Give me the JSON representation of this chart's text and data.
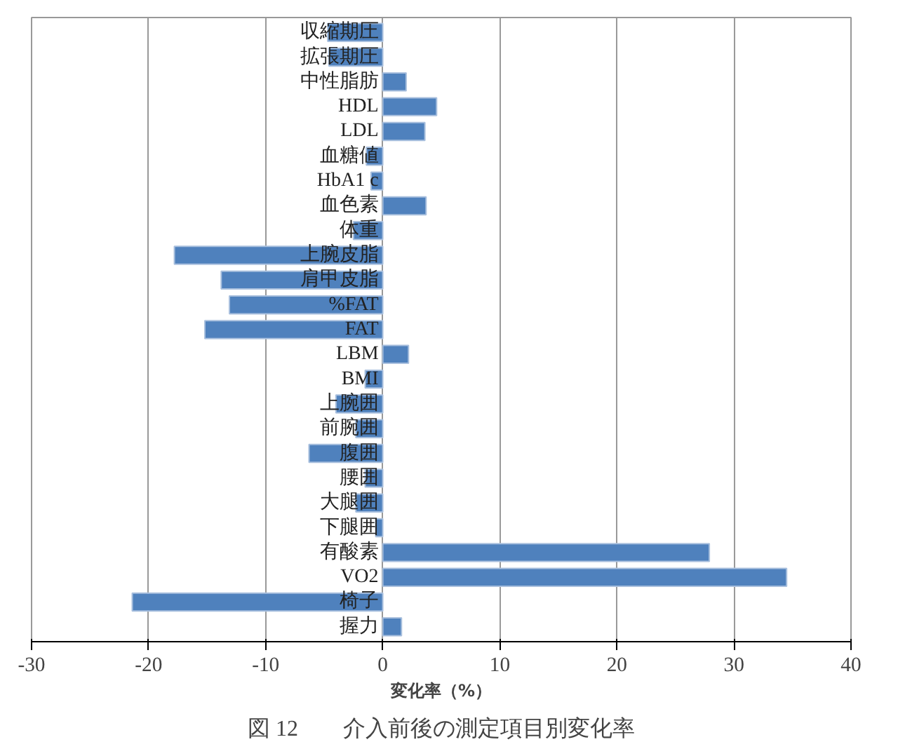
{
  "chart_data": {
    "type": "bar",
    "orientation": "horizontal",
    "title": "図 12　　介入前後の測定項目別変化率",
    "xlabel": "変化率（%）",
    "categories": [
      "収縮期圧",
      "拡張期圧",
      "中性脂肪",
      "HDL",
      "LDL",
      "血糖値",
      "HbA1 c",
      "血色素",
      "体重",
      "上腕皮脂",
      "肩甲皮脂",
      "%FAT",
      "FAT",
      "LBM",
      "BMI",
      "上腕囲",
      "前腕囲",
      "腹囲",
      "腰囲",
      "大腿囲",
      "下腿囲",
      "有酸素",
      "VO2",
      "椅子",
      "握力"
    ],
    "values": [
      -4.7,
      -4.6,
      2.0,
      4.6,
      3.6,
      -1.4,
      -1.0,
      3.7,
      -2.5,
      -17.8,
      -13.8,
      -13.1,
      -15.2,
      2.2,
      -1.5,
      -4.0,
      -2.3,
      -6.3,
      -1.5,
      -2.3,
      -0.6,
      27.9,
      34.5,
      -21.4,
      1.6
    ],
    "color": "#4f81bd",
    "xlim": [
      -30,
      40
    ],
    "xticks": [
      -30,
      -20,
      -10,
      0,
      10,
      20,
      30,
      40
    ],
    "grid": "x"
  }
}
